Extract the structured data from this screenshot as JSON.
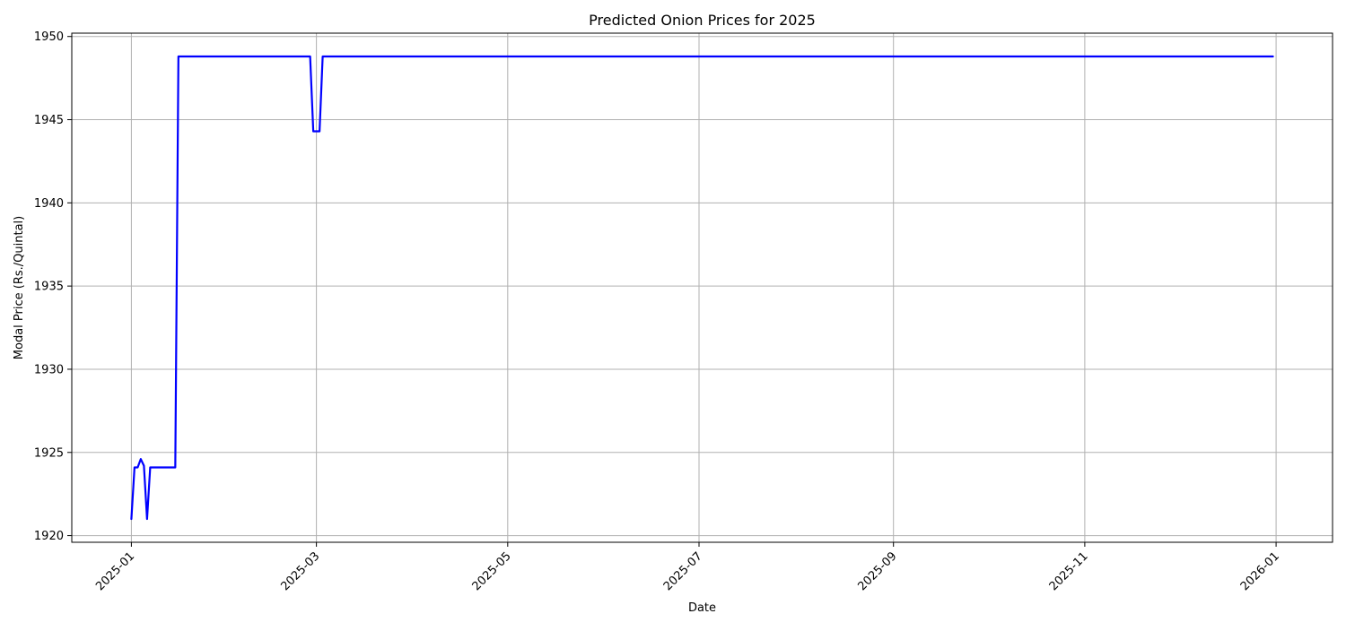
{
  "chart_data": {
    "type": "line",
    "title": "Predicted Onion Prices for 2025",
    "xlabel": "Date",
    "ylabel": "Modal Price (Rs./Quintal)",
    "x_tick_labels": [
      "2025-01",
      "2025-03",
      "2025-05",
      "2025-07",
      "2025-09",
      "2025-11",
      "2026-01"
    ],
    "y_tick_labels": [
      "1920",
      "1925",
      "1930",
      "1935",
      "1940",
      "1945",
      "1950"
    ],
    "xlim": [
      "2024-12-13",
      "2026-01-19"
    ],
    "ylim": [
      1919.6,
      1950.2
    ],
    "grid": true,
    "line_color": "#0000ff",
    "series": [
      {
        "x": [
          "2025-01-01",
          "2025-01-02",
          "2025-01-03",
          "2025-01-04",
          "2025-01-05",
          "2025-01-06",
          "2025-01-07",
          "2025-01-08",
          "2025-01-09",
          "2025-01-10",
          "2025-01-15",
          "2025-01-16",
          "2025-02-27",
          "2025-02-28",
          "2025-03-02",
          "2025-03-03",
          "2025-12-31"
        ],
        "y": [
          1921.0,
          1924.1,
          1924.1,
          1924.6,
          1924.2,
          1921.0,
          1924.1,
          1924.1,
          1924.1,
          1924.1,
          1924.1,
          1948.8,
          1948.8,
          1944.3,
          1944.3,
          1948.8,
          1948.8
        ]
      }
    ]
  }
}
